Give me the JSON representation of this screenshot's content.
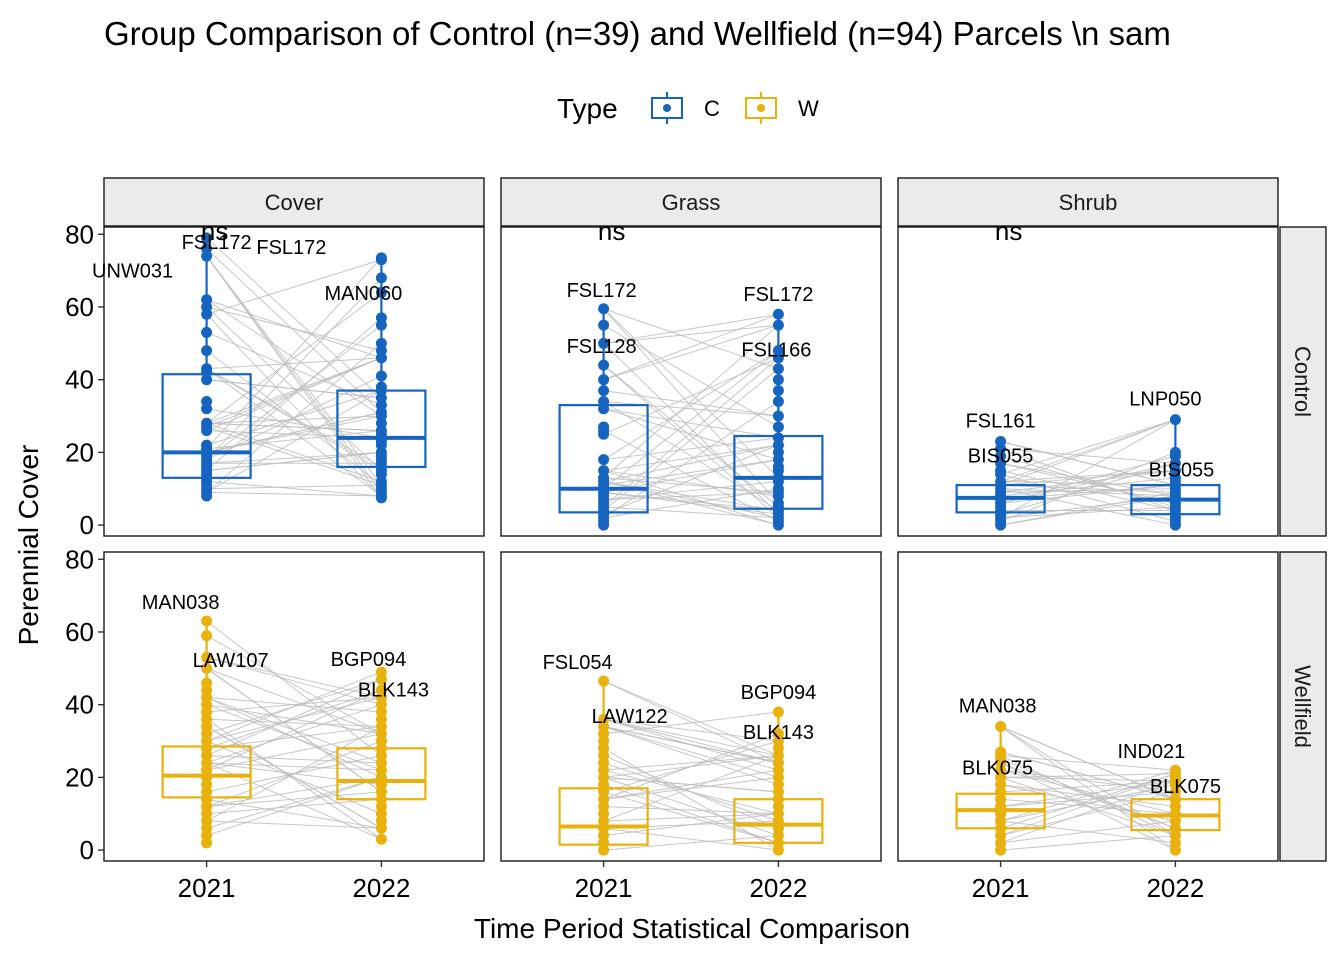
{
  "chart_data": {
    "type": "box",
    "title": "Group Comparison of Control (n=39) and Wellfield (n=94) Parcels \\n sam",
    "xlabel": "Time Period Statistical Comparison",
    "ylabel": "Perennial Cover",
    "ylim": [
      -3,
      82
    ],
    "yticks": [
      0,
      20,
      40,
      60,
      80
    ],
    "categories": [
      "2021",
      "2022"
    ],
    "legend": {
      "title": "Type",
      "position": "top",
      "entries": [
        {
          "key": "C",
          "label": "C",
          "color": "#1565c0"
        },
        {
          "key": "W",
          "label": "W",
          "color": "#e8b10c"
        }
      ]
    },
    "facet_cols": [
      "Cover",
      "Grass",
      "Shrub"
    ],
    "facet_rows": [
      "Control",
      "Wellfield"
    ],
    "panels": [
      {
        "col": "Cover",
        "row": "Control",
        "type": "C",
        "significance": "ns",
        "boxes": [
          {
            "year": "2021",
            "min": 8,
            "q1": 13,
            "median": 20,
            "q3": 41.5,
            "max": 79
          },
          {
            "year": "2022",
            "min": 7.5,
            "q1": 16,
            "median": 24,
            "q3": 37,
            "max": 73.5
          }
        ],
        "points_2021": [
          79,
          76,
          74,
          62,
          60,
          58,
          53,
          48,
          43,
          42,
          40,
          34,
          32,
          28,
          27,
          26,
          22,
          21,
          20,
          19,
          18,
          17,
          16,
          15,
          14,
          13,
          12,
          11,
          10,
          9,
          8
        ],
        "points_2022": [
          73.5,
          73,
          68,
          64,
          57,
          55,
          50,
          48,
          46,
          41,
          38,
          37,
          35,
          33,
          31,
          30,
          28,
          26,
          25,
          24,
          23,
          22,
          20,
          19,
          18,
          17,
          16,
          15,
          14,
          12,
          11,
          10,
          9,
          8,
          7.5
        ],
        "labels": [
          {
            "text": "FSL172",
            "year": "2021",
            "value": 79,
            "dx": 10,
            "dy": 11
          },
          {
            "text": "UNW031",
            "year": "2021",
            "value": 62,
            "dx": -74,
            "dy": -22
          },
          {
            "text": "FSL172",
            "year": "2022",
            "value": 73.5,
            "dx": -90,
            "dy": -4
          },
          {
            "text": "MAN060",
            "year": "2022",
            "value": 57,
            "dx": -18,
            "dy": -18
          }
        ]
      },
      {
        "col": "Grass",
        "row": "Control",
        "type": "C",
        "significance": "ns",
        "boxes": [
          {
            "year": "2021",
            "min": 0,
            "q1": 3.5,
            "median": 10,
            "q3": 33,
            "max": 59.5
          },
          {
            "year": "2022",
            "min": 0,
            "q1": 4.5,
            "median": 13,
            "q3": 24.5,
            "max": 58
          }
        ],
        "points_2021": [
          59.5,
          55,
          50,
          44,
          40,
          37,
          34,
          32,
          27,
          26,
          25,
          18,
          15,
          13,
          12,
          11,
          10,
          9,
          8,
          7,
          6,
          5,
          4,
          3,
          2,
          1,
          0
        ],
        "points_2022": [
          58,
          55,
          48,
          46,
          43,
          40,
          37,
          34,
          30,
          27,
          24,
          22,
          20,
          18,
          16,
          15,
          13,
          12,
          10,
          9,
          8,
          6,
          5,
          4,
          3,
          2,
          1,
          0
        ],
        "labels": [
          {
            "text": "FSL172",
            "year": "2021",
            "value": 59.5,
            "dx": -2,
            "dy": -12
          },
          {
            "text": "FSL128",
            "year": "2021",
            "value": 44,
            "dx": -2,
            "dy": -12
          },
          {
            "text": "FSL172",
            "year": "2022",
            "value": 58,
            "dx": 0,
            "dy": -13
          },
          {
            "text": "FSL166",
            "year": "2022",
            "value": 48,
            "dx": -2,
            "dy": 6
          }
        ]
      },
      {
        "col": "Shrub",
        "row": "Control",
        "type": "C",
        "significance": "ns",
        "boxes": [
          {
            "year": "2021",
            "min": 0,
            "q1": 3.5,
            "median": 7.5,
            "q3": 11,
            "max": 23
          },
          {
            "year": "2022",
            "min": 0,
            "q1": 3,
            "median": 7,
            "q3": 11,
            "max": 29
          }
        ],
        "points_2021": [
          23,
          21,
          19,
          17,
          15,
          14,
          12,
          11,
          10,
          9,
          8,
          7,
          6,
          5,
          4,
          3,
          2,
          1,
          0
        ],
        "points_2022": [
          29,
          20,
          19,
          17,
          15,
          13,
          12,
          11,
          10,
          9,
          8,
          7,
          6,
          5,
          4,
          3,
          2,
          1,
          0
        ],
        "labels": [
          {
            "text": "FSL161",
            "year": "2021",
            "value": 23,
            "dx": 0,
            "dy": -14
          },
          {
            "text": "BIS055",
            "year": "2021",
            "value": 15,
            "dx": 0,
            "dy": -8
          },
          {
            "text": "LNP050",
            "year": "2022",
            "value": 29,
            "dx": -10,
            "dy": -14
          },
          {
            "text": "BIS055",
            "year": "2022",
            "value": 12,
            "dx": 6,
            "dy": -5
          }
        ]
      },
      {
        "col": "Cover",
        "row": "Wellfield",
        "type": "W",
        "significance": "",
        "boxes": [
          {
            "year": "2021",
            "min": 2,
            "q1": 14.5,
            "median": 20.5,
            "q3": 28.5,
            "max": 63
          },
          {
            "year": "2022",
            "min": 3,
            "q1": 14,
            "median": 19,
            "q3": 28,
            "max": 49
          }
        ],
        "points_2021": [
          63,
          59,
          53,
          50,
          46,
          44,
          42,
          40,
          38,
          36,
          34,
          32,
          30,
          28,
          26,
          24,
          22,
          20,
          18,
          16,
          14,
          12,
          10,
          8,
          6,
          4,
          2
        ],
        "points_2022": [
          49,
          47,
          44,
          42,
          40,
          38,
          36,
          34,
          32,
          30,
          28,
          26,
          24,
          22,
          20,
          18,
          16,
          14,
          12,
          10,
          8,
          6,
          3
        ],
        "labels": [
          {
            "text": "MAN038",
            "year": "2021",
            "value": 63,
            "dx": -26,
            "dy": -12
          },
          {
            "text": "LAW107",
            "year": "2021",
            "value": 52,
            "dx": 24,
            "dy": 6
          },
          {
            "text": "BGP094",
            "year": "2022",
            "value": 49,
            "dx": -13,
            "dy": -6
          },
          {
            "text": "BLK143",
            "year": "2022",
            "value": 42,
            "dx": 12,
            "dy": -1
          }
        ]
      },
      {
        "col": "Grass",
        "row": "Wellfield",
        "type": "W",
        "significance": "",
        "boxes": [
          {
            "year": "2021",
            "min": 0,
            "q1": 1.5,
            "median": 6.5,
            "q3": 17,
            "max": 46.5
          },
          {
            "year": "2022",
            "min": 0,
            "q1": 2,
            "median": 7,
            "q3": 14,
            "max": 38
          }
        ],
        "points_2021": [
          46.5,
          36,
          34,
          32,
          30,
          28,
          26,
          24,
          22,
          20,
          18,
          16,
          14,
          12,
          10,
          8,
          6,
          4,
          2,
          0
        ],
        "points_2022": [
          38,
          32,
          30,
          28,
          26,
          24,
          22,
          20,
          18,
          16,
          14,
          12,
          10,
          8,
          6,
          4,
          2,
          0
        ],
        "labels": [
          {
            "text": "FSL054",
            "year": "2021",
            "value": 46.5,
            "dx": -26,
            "dy": -12
          },
          {
            "text": "LAW122",
            "year": "2021",
            "value": 36,
            "dx": 26,
            "dy": 4
          },
          {
            "text": "BGP094",
            "year": "2022",
            "value": 38,
            "dx": 0,
            "dy": -13
          },
          {
            "text": "BLK143",
            "year": "2022",
            "value": 27,
            "dx": 0,
            "dy": -13
          }
        ]
      },
      {
        "col": "Shrub",
        "row": "Wellfield",
        "type": "W",
        "significance": "",
        "boxes": [
          {
            "year": "2021",
            "min": 0,
            "q1": 6,
            "median": 11,
            "q3": 15.5,
            "max": 34
          },
          {
            "year": "2022",
            "min": 0,
            "q1": 5.5,
            "median": 9.5,
            "q3": 14,
            "max": 22
          }
        ],
        "points_2021": [
          34,
          27,
          26,
          25,
          24,
          22,
          20,
          18,
          16,
          14,
          12,
          10,
          8,
          6,
          4,
          2,
          0
        ],
        "points_2022": [
          22,
          21,
          20,
          19,
          18,
          16,
          14,
          12,
          10,
          8,
          6,
          4,
          2,
          0
        ],
        "labels": [
          {
            "text": "MAN038",
            "year": "2021",
            "value": 34,
            "dx": -3,
            "dy": -14
          },
          {
            "text": "BLK075",
            "year": "2021",
            "value": 18,
            "dx": -3,
            "dy": -10
          },
          {
            "text": "IND021",
            "year": "2022",
            "value": 22,
            "dx": -24,
            "dy": -12
          },
          {
            "text": "BLK075",
            "year": "2022",
            "value": 13,
            "dx": 10,
            "dy": -10
          }
        ]
      }
    ]
  }
}
